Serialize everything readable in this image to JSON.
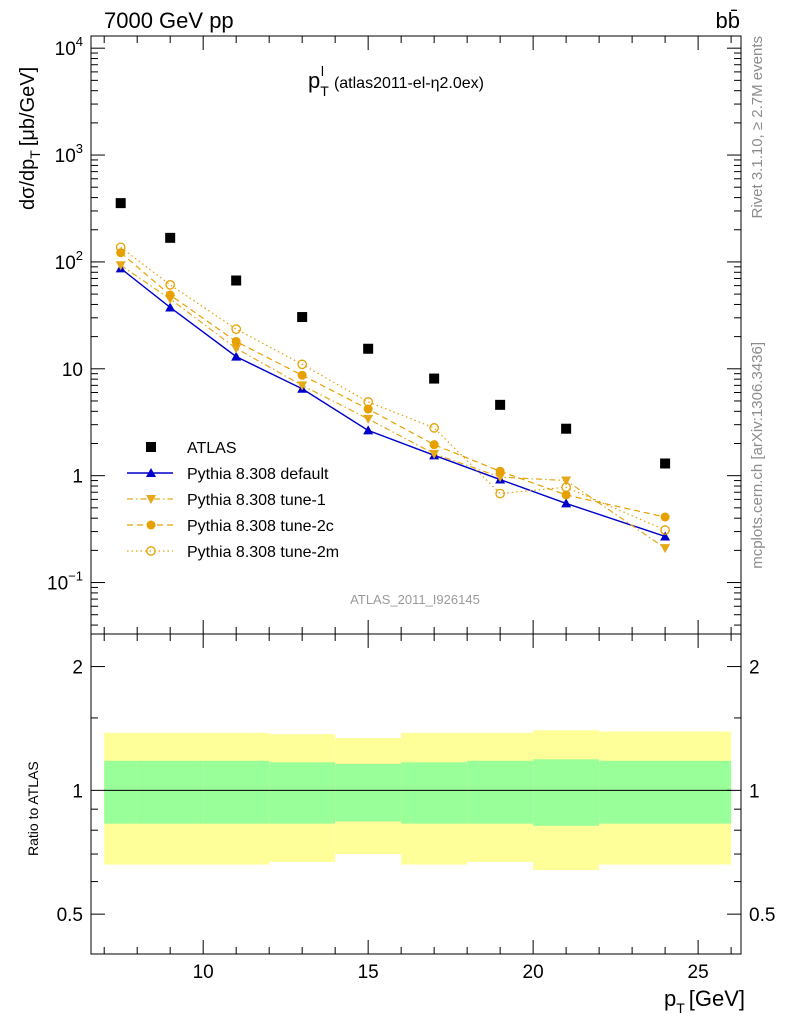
{
  "header": {
    "left": "7000 GeV pp",
    "right": "bb̄"
  },
  "side_labels": {
    "rivet": "Rivet 3.1.10, ≥ 2.7M events",
    "mcplots": "mcplots.cern.ch [arXiv:1306.3436]"
  },
  "chart_data": {
    "type": "scatter",
    "title": "p_T^l (atlas2011-el-η2.0ex)",
    "watermark": "ATLAS_2011_I926145",
    "xlabel": "p_T [GeV]",
    "ylabel": "dσ/dp_T [μb/GeV]",
    "ratio_ylabel": "Ratio to ATLAS",
    "xlim": [
      6.6,
      26.3
    ],
    "ylim": [
      0.033,
      13000
    ],
    "yscale": "log",
    "ratio_ylim": [
      0.4,
      2.4
    ],
    "ratio_yscale": "log",
    "x_ticks": [
      10,
      15,
      20,
      25
    ],
    "y_ticks": [
      "10^-1",
      "1",
      "10",
      "10^2",
      "10^3",
      "10^4"
    ],
    "ratio_ticks": [
      "0.5",
      "1",
      "2"
    ],
    "legend_position": "lower-left",
    "x": [
      7.5,
      9.0,
      11.0,
      13.0,
      15.0,
      17.0,
      19.0,
      21.0,
      24.0
    ],
    "x_bins": [
      [
        7,
        8
      ],
      [
        8,
        10
      ],
      [
        10,
        12
      ],
      [
        12,
        14
      ],
      [
        14,
        16
      ],
      [
        16,
        18
      ],
      [
        18,
        20
      ],
      [
        20,
        22
      ],
      [
        22,
        26
      ]
    ],
    "series": [
      {
        "name": "ATLAS",
        "color": "#000000",
        "marker": "square",
        "values": [
          355,
          168,
          67,
          30.5,
          15.4,
          8.1,
          4.6,
          2.75,
          1.3
        ]
      },
      {
        "name": "Pythia 8.308 default",
        "color": "#0000cc",
        "marker": "triangle-up",
        "line": "solid",
        "values": [
          87,
          37.5,
          13,
          6.5,
          2.65,
          1.55,
          0.92,
          0.55,
          0.27
        ]
      },
      {
        "name": "Pythia 8.308 tune-1",
        "color": "#e6a817",
        "marker": "triangle-down",
        "line": "dashdot",
        "values": [
          93,
          45,
          15.5,
          7.0,
          3.4,
          1.6,
          0.97,
          0.9,
          0.21
        ]
      },
      {
        "name": "Pythia 8.308 tune-2c",
        "color": "#e6a000",
        "marker": "circle",
        "line": "dashed",
        "values": [
          122,
          49,
          18,
          8.7,
          4.2,
          1.95,
          1.1,
          0.66,
          0.41
        ]
      },
      {
        "name": "Pythia 8.308 tune-2m",
        "color": "#e6a000",
        "marker": "open-circle",
        "line": "dotted",
        "values": [
          137,
          61,
          23.5,
          11,
          4.9,
          2.8,
          0.68,
          0.78,
          0.31
        ]
      }
    ],
    "ratio_bands": {
      "green_color": "#99ff99",
      "yellow_color": "#ffff99",
      "green": [
        [
          0.83,
          1.18
        ],
        [
          0.83,
          1.18
        ],
        [
          0.83,
          1.18
        ],
        [
          0.83,
          1.17
        ],
        [
          0.84,
          1.16
        ],
        [
          0.83,
          1.17
        ],
        [
          0.83,
          1.18
        ],
        [
          0.82,
          1.19
        ],
        [
          0.83,
          1.18
        ]
      ],
      "yellow": [
        [
          0.66,
          1.38
        ],
        [
          0.66,
          1.38
        ],
        [
          0.66,
          1.38
        ],
        [
          0.67,
          1.37
        ],
        [
          0.7,
          1.34
        ],
        [
          0.66,
          1.38
        ],
        [
          0.67,
          1.38
        ],
        [
          0.64,
          1.4
        ],
        [
          0.66,
          1.39
        ]
      ]
    }
  }
}
